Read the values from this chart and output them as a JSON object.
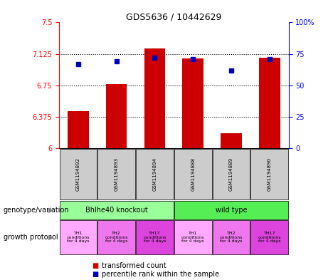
{
  "title": "GDS5636 / 10442629",
  "samples": [
    "GSM1194892",
    "GSM1194893",
    "GSM1194894",
    "GSM1194888",
    "GSM1194889",
    "GSM1194890"
  ],
  "bar_values": [
    6.44,
    6.77,
    7.19,
    7.07,
    6.18,
    7.08
  ],
  "dot_values": [
    67,
    69,
    72,
    71,
    62,
    71
  ],
  "ylim_left": [
    6.0,
    7.5
  ],
  "ylim_right": [
    0,
    100
  ],
  "yticks_left": [
    6.0,
    6.375,
    6.75,
    7.125,
    7.5
  ],
  "ytick_labels_left": [
    "6",
    "6.375",
    "6.75",
    "7.125",
    "7.5"
  ],
  "yticks_right": [
    0,
    25,
    50,
    75,
    100
  ],
  "ytick_labels_right": [
    "0",
    "25",
    "50",
    "75",
    "100%"
  ],
  "bar_color": "#cc0000",
  "dot_color": "#0000bb",
  "bar_bottom": 6.0,
  "genotype_groups": [
    {
      "label": "Bhlhe40 knockout",
      "start": 0,
      "end": 3,
      "color": "#99ff99"
    },
    {
      "label": "wild type",
      "start": 3,
      "end": 6,
      "color": "#55ee55"
    }
  ],
  "growth_colors": [
    "#ffaaff",
    "#ee77ee",
    "#dd44dd",
    "#ffaaff",
    "#ee77ee",
    "#dd44dd"
  ],
  "growth_protocol_labels": [
    "TH1\nconditions\nfor 4 days",
    "TH2\nconditions\nfor 4 days",
    "TH17\nconditions\nfor 4 days",
    "TH1\nconditions\nfor 4 days",
    "TH2\nconditions\nfor 4 days",
    "TH17\nconditions\nfor 4 days"
  ],
  "legend_red_label": "transformed count",
  "legend_blue_label": "percentile rank within the sample",
  "genotype_label": "genotype/variation",
  "growth_label": "growth protocol",
  "sample_bg_color": "#cccccc",
  "bar_width": 0.55
}
